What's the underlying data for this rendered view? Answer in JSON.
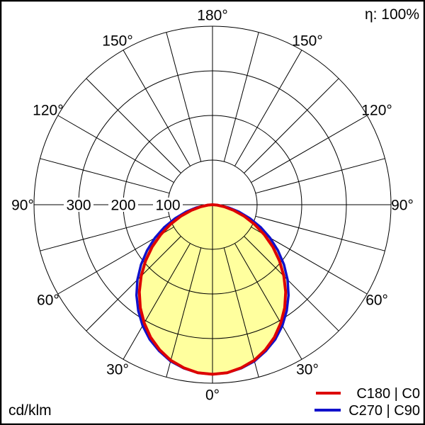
{
  "chart_data": {
    "type": "polar",
    "subtype": "photometric-luminous-intensity-distribution",
    "title": "",
    "unit_label": "cd/klm",
    "efficiency_label": "η: 100%",
    "rmax": 400,
    "radial_rings": [
      100,
      200,
      300,
      400
    ],
    "radial_ticks": [
      300,
      200,
      100
    ],
    "radial_tick_labels": [
      "300",
      "200",
      "100"
    ],
    "grid_angle_step_deg": 15,
    "gamma_ticks_deg": [
      0,
      30,
      60,
      90,
      120,
      150,
      180
    ],
    "angle_tick_labels": [
      "0°",
      "30°",
      "60°",
      "90°",
      "120°",
      "150°",
      "180°"
    ],
    "colors": {
      "curve_c0_c180": "#dd0000",
      "curve_c90_c270": "#1111cc",
      "fill": "#ffff9e",
      "grid": "#000000",
      "background": "#ffffff",
      "border": "#000000"
    },
    "legend": [
      {
        "label": "C180 | C0",
        "color": "#dd0000"
      },
      {
        "label": "C270 | C90",
        "color": "#1111cc"
      }
    ],
    "series": [
      {
        "name": "C180 | C0",
        "color": "#dd0000",
        "gamma": [
          0,
          5,
          10,
          15,
          20,
          25,
          30,
          35,
          40,
          45,
          50,
          55,
          60,
          65,
          70,
          75,
          80,
          85,
          90
        ],
        "values": [
          380,
          378,
          371,
          361,
          346,
          328,
          306,
          282,
          255,
          226,
          196,
          165,
          134,
          104,
          76,
          50,
          28,
          10,
          0
        ]
      },
      {
        "name": "C270 | C90",
        "color": "#1111cc",
        "gamma": [
          0,
          5,
          10,
          15,
          20,
          25,
          30,
          35,
          40,
          45,
          50,
          55,
          60,
          65,
          70,
          75,
          80,
          85,
          90
        ],
        "values": [
          380,
          378,
          372,
          363,
          349,
          333,
          313,
          290,
          265,
          238,
          209,
          179,
          149,
          119,
          89,
          61,
          36,
          14,
          0
        ]
      }
    ]
  }
}
